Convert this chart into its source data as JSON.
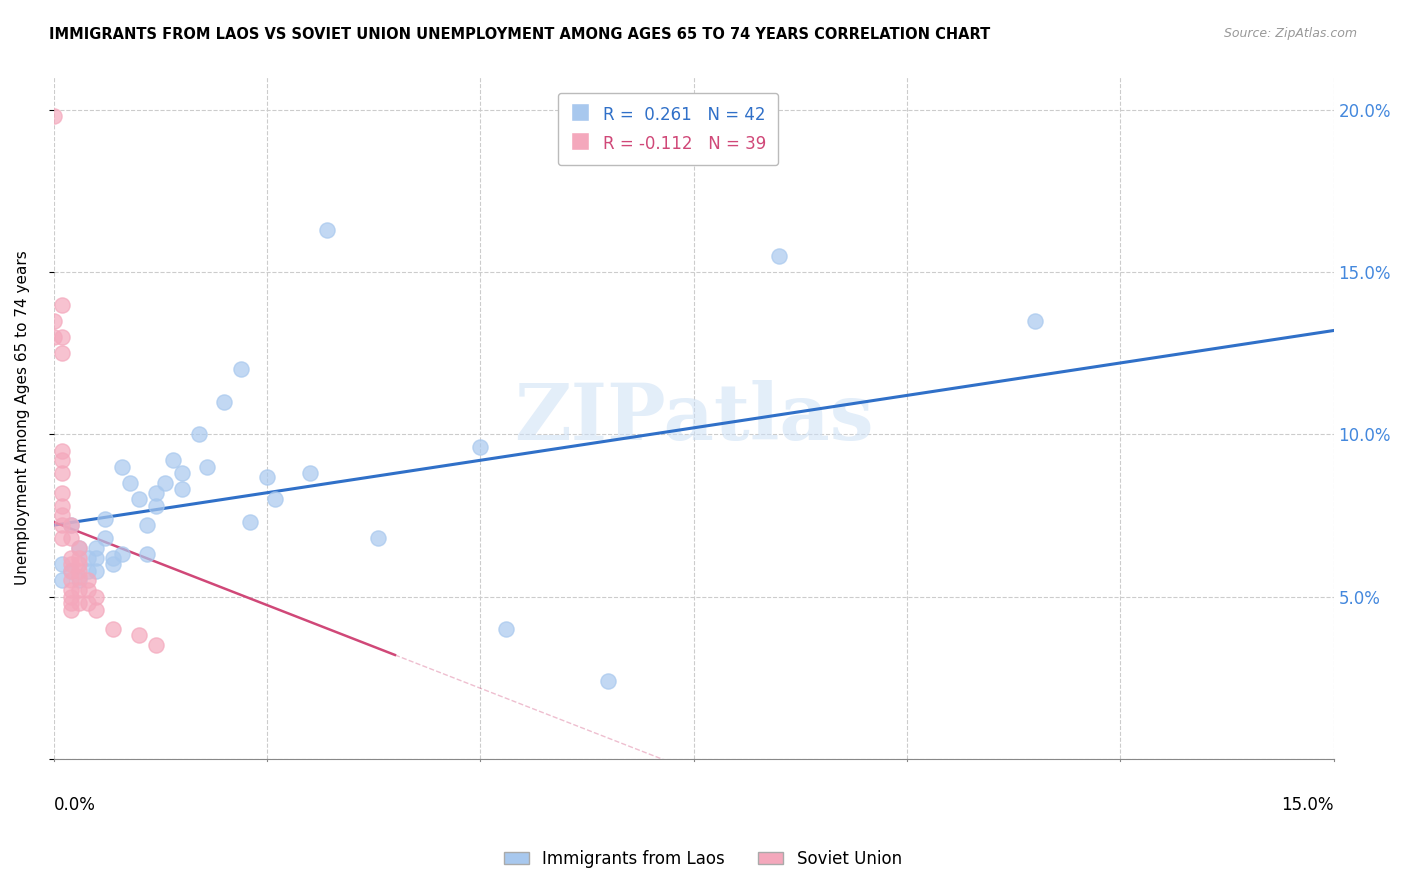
{
  "title": "IMMIGRANTS FROM LAOS VS SOVIET UNION UNEMPLOYMENT AMONG AGES 65 TO 74 YEARS CORRELATION CHART",
  "source": "Source: ZipAtlas.com",
  "ylabel": "Unemployment Among Ages 65 to 74 years",
  "xlim": [
    0.0,
    0.15
  ],
  "ylim": [
    0.0,
    0.21
  ],
  "yticks": [
    0.0,
    0.05,
    0.1,
    0.15,
    0.2
  ],
  "ytick_labels": [
    "",
    "5.0%",
    "10.0%",
    "15.0%",
    "20.0%"
  ],
  "laos_R": 0.261,
  "laos_N": 42,
  "soviet_R": -0.112,
  "soviet_N": 39,
  "laos_color": "#a8c8ee",
  "soviet_color": "#f4a8bc",
  "laos_line_color": "#3070c8",
  "soviet_line_color": "#d04878",
  "watermark": "ZIPatlas",
  "legend_label_laos": "Immigrants from Laos",
  "legend_label_soviet": "Soviet Union",
  "laos_line_x0": 0.0,
  "laos_line_y0": 0.072,
  "laos_line_x1": 0.15,
  "laos_line_y1": 0.132,
  "soviet_line_x0": 0.0,
  "soviet_line_y0": 0.073,
  "soviet_line_x1": 0.04,
  "soviet_line_y1": 0.032,
  "laos_x": [
    0.001,
    0.001,
    0.002,
    0.002,
    0.003,
    0.003,
    0.004,
    0.004,
    0.005,
    0.005,
    0.005,
    0.006,
    0.006,
    0.007,
    0.007,
    0.008,
    0.008,
    0.009,
    0.01,
    0.011,
    0.011,
    0.012,
    0.012,
    0.013,
    0.014,
    0.015,
    0.015,
    0.017,
    0.018,
    0.02,
    0.022,
    0.023,
    0.025,
    0.026,
    0.03,
    0.032,
    0.038,
    0.05,
    0.053,
    0.065,
    0.085,
    0.115
  ],
  "laos_y": [
    0.06,
    0.055,
    0.058,
    0.072,
    0.055,
    0.065,
    0.058,
    0.062,
    0.058,
    0.062,
    0.065,
    0.068,
    0.074,
    0.06,
    0.062,
    0.063,
    0.09,
    0.085,
    0.08,
    0.063,
    0.072,
    0.078,
    0.082,
    0.085,
    0.092,
    0.083,
    0.088,
    0.1,
    0.09,
    0.11,
    0.12,
    0.073,
    0.087,
    0.08,
    0.088,
    0.163,
    0.068,
    0.096,
    0.04,
    0.024,
    0.155,
    0.135
  ],
  "soviet_x": [
    0.0,
    0.0,
    0.0,
    0.001,
    0.001,
    0.001,
    0.001,
    0.001,
    0.001,
    0.001,
    0.001,
    0.001,
    0.001,
    0.001,
    0.002,
    0.002,
    0.002,
    0.002,
    0.002,
    0.002,
    0.002,
    0.002,
    0.002,
    0.002,
    0.003,
    0.003,
    0.003,
    0.003,
    0.003,
    0.003,
    0.003,
    0.004,
    0.004,
    0.004,
    0.005,
    0.005,
    0.007,
    0.01,
    0.012
  ],
  "soviet_y": [
    0.198,
    0.135,
    0.13,
    0.14,
    0.13,
    0.125,
    0.095,
    0.092,
    0.088,
    0.082,
    0.078,
    0.075,
    0.072,
    0.068,
    0.072,
    0.068,
    0.062,
    0.06,
    0.058,
    0.055,
    0.052,
    0.05,
    0.048,
    0.046,
    0.065,
    0.062,
    0.06,
    0.058,
    0.056,
    0.052,
    0.048,
    0.055,
    0.052,
    0.048,
    0.05,
    0.046,
    0.04,
    0.038,
    0.035
  ]
}
